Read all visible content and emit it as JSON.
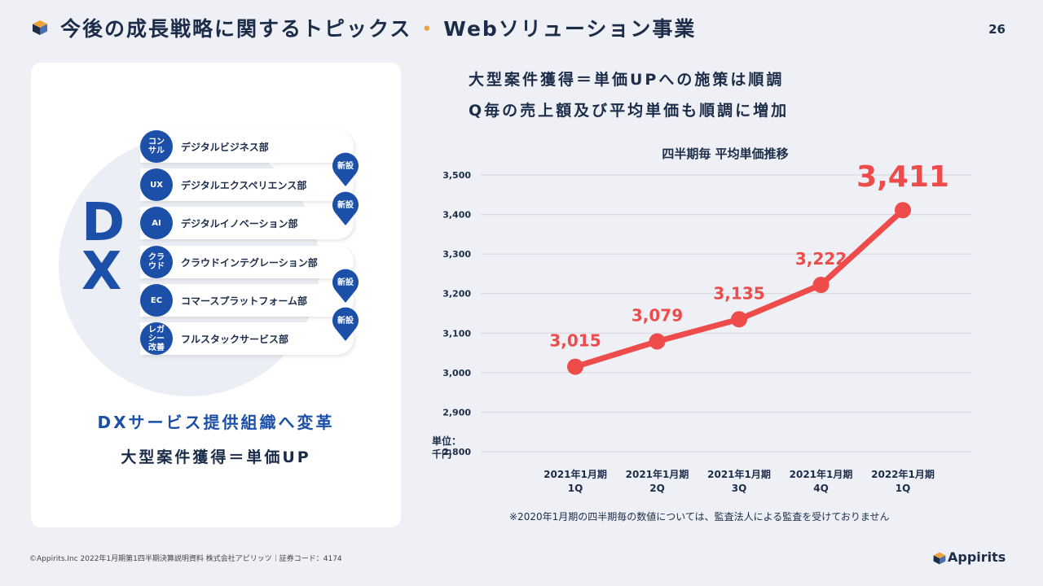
{
  "header": {
    "title_main": "今後の成長戦略に関するトピックス",
    "title_sep": "・",
    "title_sub": "Webソリューション事業",
    "page_number": "26"
  },
  "left_card": {
    "dx_letters": [
      "D",
      "X"
    ],
    "departments": [
      {
        "badge": "コン\nサル",
        "label": "デジタルビジネス部"
      },
      {
        "badge": "UX",
        "label": "デジタルエクスペリエンス部"
      },
      {
        "badge": "AI",
        "label": "デジタルイノベーション部"
      },
      {
        "badge": "クラ\nウド",
        "label": "クラウドインテグレーション部"
      },
      {
        "badge": "EC",
        "label": "コマースプラットフォーム部"
      },
      {
        "badge": "レガ\nシー\n改善",
        "label": "フルスタックサービス部"
      }
    ],
    "new_tag": "新設",
    "caption_1": "DXサービス提供組織へ変革",
    "caption_2": "大型案件獲得＝単価UP"
  },
  "right": {
    "headline_1": "大型案件獲得＝単価UPへの施策は順調",
    "headline_2": "Q毎の売上額及び平均単価も順調に増加",
    "unit_label": "単位：\n千円",
    "note": "※2020年1月期の四半期毎の数値については、監査法人による監査を受けておりません"
  },
  "chart_data": {
    "type": "line",
    "title": "四半期毎 平均単価推移",
    "categories": [
      "2021年1月期\n1Q",
      "2021年1月期\n2Q",
      "2021年1月期\n3Q",
      "2021年1月期\n4Q",
      "2022年1月期\n1Q"
    ],
    "series": [
      {
        "values": [
          3015,
          3079,
          3135,
          3222,
          3411
        ]
      }
    ],
    "data_labels": [
      "3,015",
      "3,079",
      "3,135",
      "3,222",
      "3,411"
    ],
    "ylim": [
      2800,
      3500
    ],
    "yticks": [
      2800,
      2900,
      3000,
      3100,
      3200,
      3300,
      3400,
      3500
    ],
    "ytick_labels": [
      "2,800",
      "2,900",
      "3,000",
      "3,100",
      "3,200",
      "3,300",
      "3,400",
      "3,500"
    ],
    "grid": true,
    "color": "#ee4b4b"
  },
  "footer": {
    "copyright": "©Appirits.Inc  2022年1月期第1四半期決算説明資料  株式会社アピリッツ｜証券コード：4174",
    "logo_text": "Appirits"
  }
}
